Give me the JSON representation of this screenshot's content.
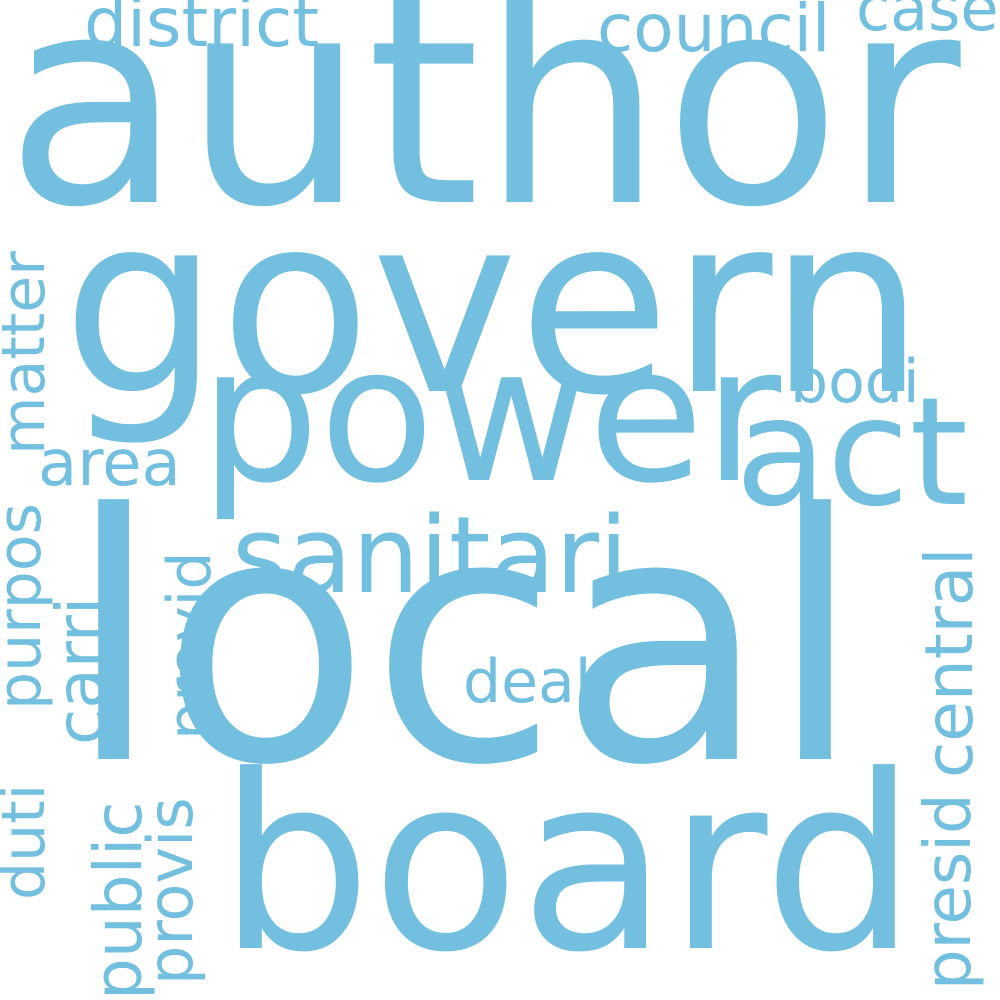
{
  "words": [
    {
      "text": "author"
    },
    {
      "text": "govern"
    },
    {
      "text": "local"
    },
    {
      "text": "board"
    },
    {
      "text": "power"
    },
    {
      "text": "act"
    },
    {
      "text": "sanitari"
    },
    {
      "text": "district"
    },
    {
      "text": "council"
    },
    {
      "text": "case"
    },
    {
      "text": "matter"
    },
    {
      "text": "area"
    },
    {
      "text": "bodi"
    },
    {
      "text": "purpos"
    },
    {
      "text": "carri"
    },
    {
      "text": "provid"
    },
    {
      "text": "deal"
    },
    {
      "text": "central"
    },
    {
      "text": "duti"
    },
    {
      "text": "public"
    },
    {
      "text": "provis"
    },
    {
      "text": "presid"
    }
  ],
  "colors": {
    "word": "#72bfdf",
    "background": "#ffffff"
  }
}
